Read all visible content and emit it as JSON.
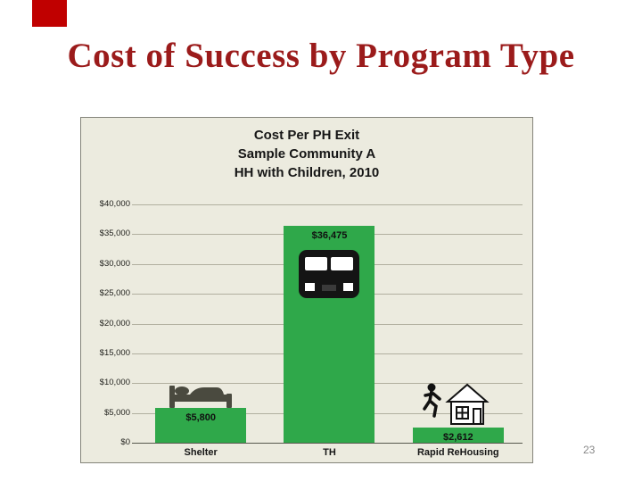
{
  "slide": {
    "title": "Cost of Success by Program Type",
    "title_color": "#9b1b1b",
    "accent_color": "#c00000",
    "page_number": "23"
  },
  "chart_data": {
    "type": "bar",
    "title_lines": [
      "Cost Per PH Exit",
      "Sample Community A",
      "HH with Children, 2010"
    ],
    "categories": [
      "Shelter",
      "TH",
      "Rapid ReHousing"
    ],
    "values": [
      5800,
      36475,
      2612
    ],
    "data_labels": [
      "$5,800",
      "$36,475",
      "$2,612"
    ],
    "xlabel": "",
    "ylabel": "",
    "ylim": [
      0,
      40000
    ],
    "y_tick_step": 5000,
    "y_ticks": [
      "$40,000",
      "$35,000",
      "$30,000",
      "$25,000",
      "$20,000",
      "$15,000",
      "$10,000",
      "$5,000",
      "$0"
    ],
    "grid": true,
    "legend": false,
    "bar_color": "#2fa84a",
    "plot_bg": "#ecebdf",
    "icons": [
      "bed-icon",
      "bus-icon",
      "running-person-house-icon"
    ]
  }
}
